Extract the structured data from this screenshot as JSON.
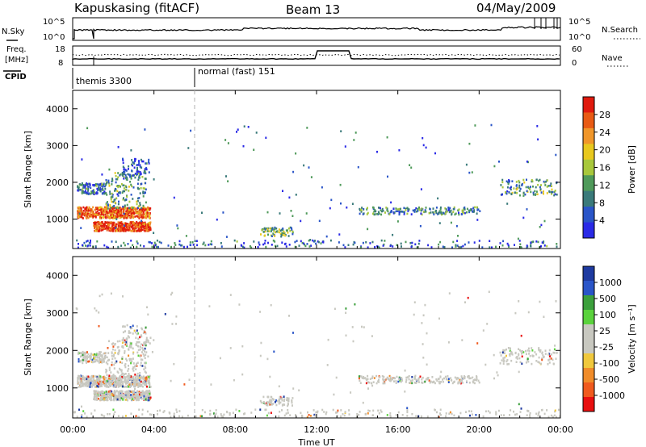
{
  "header": {
    "station": "Kapuskasing (fitACF)",
    "beam": "Beam 13",
    "date": "04/May/2009"
  },
  "colors": {
    "power_scale": [
      "#2a2ae6",
      "#2a55c8",
      "#3a7a7a",
      "#4f9a5a",
      "#a8c83c",
      "#e8c81e",
      "#f0962a",
      "#e85a14",
      "#e01a0e"
    ],
    "velocity_scale": [
      "#e80f0f",
      "#f05a1e",
      "#f08c2a",
      "#f0c83c",
      "#c8c8c0",
      "#c8c8c0",
      "#5ad23c",
      "#3ca03c",
      "#2a55c8",
      "#1e3aa0"
    ]
  },
  "chart_data": [
    {
      "type": "line",
      "panel": "noise",
      "left_label": "N.Sky",
      "right_label": "N.Search",
      "left_ticks": [
        "10^5",
        "10^0"
      ],
      "right_ticks": [
        "10^5",
        "10^0"
      ]
    },
    {
      "type": "line",
      "panel": "frequency",
      "left_label_1": "Freq.",
      "left_label_2": "[MHz]",
      "right_label": "Nave",
      "left_ticks": [
        "18",
        "8"
      ],
      "right_ticks": [
        "60",
        "0"
      ],
      "cpid_label": "CPID",
      "cpid_segments": [
        {
          "start_hour": 0,
          "end_hour": 6,
          "label": "themis 3300"
        },
        {
          "start_hour": 6,
          "end_hour": 24,
          "label": "normal (fast) 151"
        }
      ]
    },
    {
      "type": "heatmap",
      "panel": "power",
      "ylabel": "Slant Range [km]",
      "y_ticks": [
        "1000",
        "2000",
        "3000",
        "4000"
      ],
      "ylim": [
        200,
        4500
      ],
      "xlim": [
        0,
        24
      ],
      "colorbar_label": "Power [dB]",
      "colorbar_ticks": [
        "4",
        "8",
        "12",
        "16",
        "20",
        "24",
        "28"
      ]
    },
    {
      "type": "heatmap",
      "panel": "velocity",
      "ylabel": "Slant Range [km]",
      "y_ticks": [
        "1000",
        "2000",
        "3000",
        "4000"
      ],
      "ylim": [
        200,
        4500
      ],
      "xlim": [
        0,
        24
      ],
      "colorbar_label": "Velocity [m s⁻¹]",
      "colorbar_ticks": [
        "1000",
        "500",
        "100",
        "25",
        "-25",
        "-100",
        "-500",
        "-1000"
      ]
    }
  ],
  "x_axis": {
    "tick_labels": [
      "00:00",
      "04:00",
      "08:00",
      "12:00",
      "16:00",
      "20:00",
      "00:00"
    ],
    "label": "Time UT"
  }
}
